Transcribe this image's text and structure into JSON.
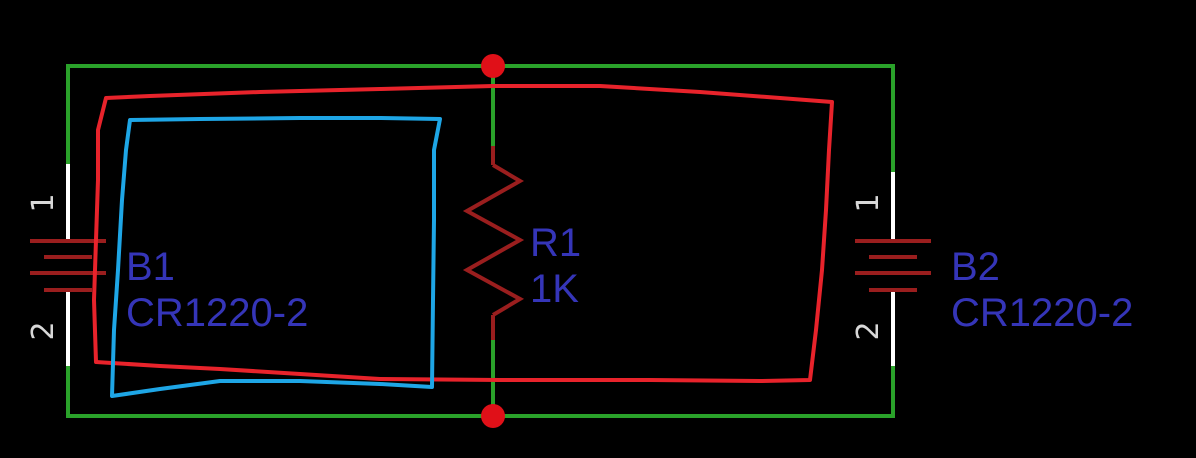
{
  "colors": {
    "background": "#000000",
    "net_wire": "#2aa22a",
    "pin_lead": "#ffffff",
    "symbol_body": "#9a1e1e",
    "junction": "#e01018",
    "label_text": "#3535b8",
    "pin_number_text": "#d8d8d8",
    "annotation_loop_red": "#e8232b",
    "annotation_loop_blue": "#1ea6e6"
  },
  "components": {
    "b1": {
      "name": "B1",
      "value": "CR1220-2",
      "pin_top": "1",
      "pin_bottom": "2"
    },
    "r1": {
      "name": "R1",
      "value": "1K"
    },
    "b2": {
      "name": "B2",
      "value": "CR1220-2",
      "pin_top": "1",
      "pin_bottom": "2"
    }
  },
  "icons": {
    "battery": "battery-icon",
    "resistor": "resistor-icon",
    "junction": "junction-dot-icon"
  }
}
